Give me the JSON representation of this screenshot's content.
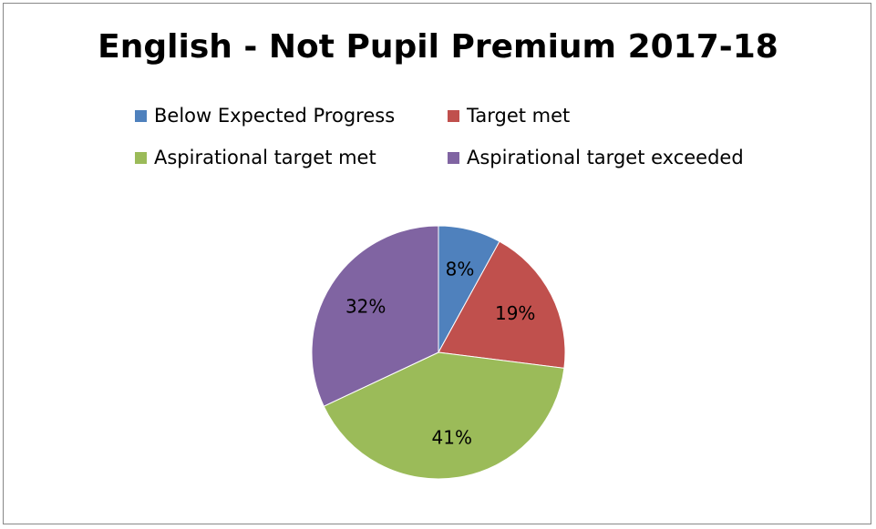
{
  "chart_data": {
    "type": "pie",
    "title": "English - Not Pupil Premium 2017-18",
    "legend_position": "top",
    "categories": [
      "Below Expected Progress",
      "Target met",
      "Aspirational target met",
      "Aspirational target exceeded"
    ],
    "values": [
      8,
      19,
      41,
      32
    ],
    "data_labels": [
      "8%",
      "19%",
      "41%",
      "32%"
    ],
    "colors": [
      "#4f81bd",
      "#c0504d",
      "#9bbb59",
      "#8064a2"
    ]
  }
}
